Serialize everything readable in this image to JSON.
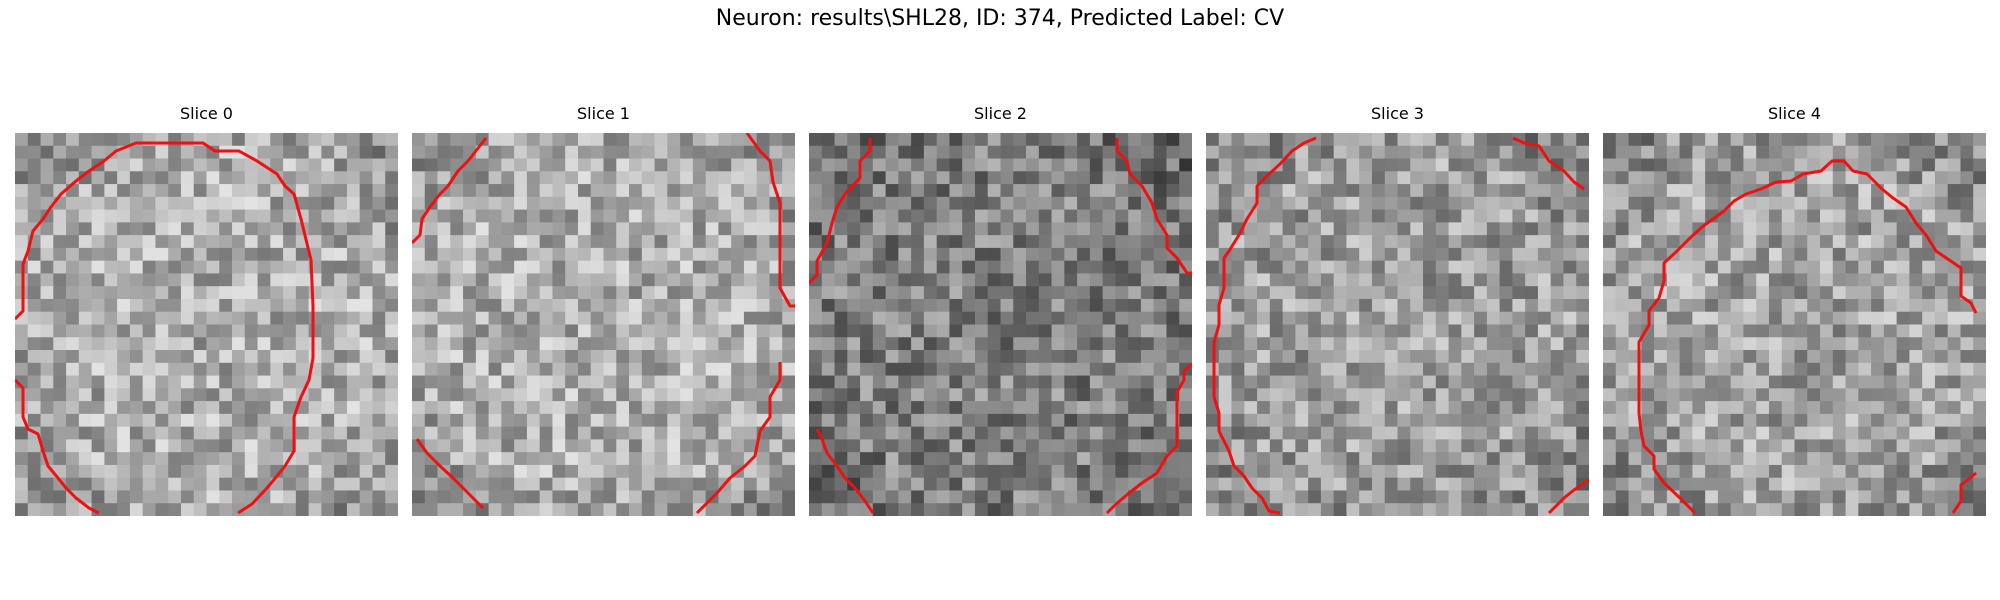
{
  "figure": {
    "title": "Neuron: results\\SHL28, ID: 374, Predicted Label: CV"
  },
  "panels": [
    {
      "title": "Slice 0"
    },
    {
      "title": "Slice 1"
    },
    {
      "title": "Slice 2"
    },
    {
      "title": "Slice 3"
    },
    {
      "title": "Slice 4"
    }
  ],
  "colors": {
    "background": "#ffffff",
    "contour": "#ee1111",
    "colormap": "grayscale"
  }
}
